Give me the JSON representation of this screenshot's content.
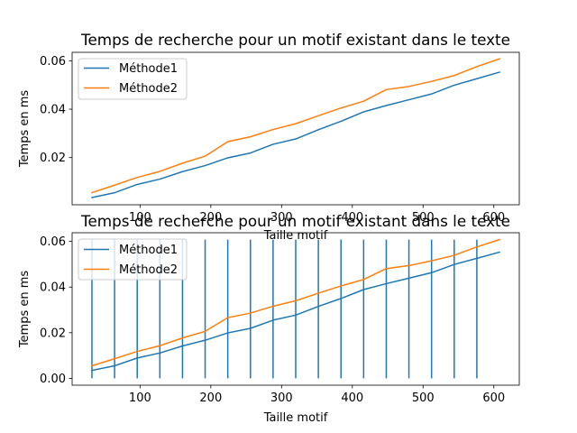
{
  "colors": {
    "series1": "#1f77b4",
    "series2": "#ff7f0e",
    "axis": "#000000",
    "legend_border": "#cccccc"
  },
  "chart_data": [
    {
      "type": "line",
      "title": "Temps de recherche pour un motif existant dans le texte",
      "xlabel": "Taille motif",
      "ylabel": "Temps en ms",
      "xlim": [
        4,
        636
      ],
      "ylim": [
        0.0005,
        0.0635
      ],
      "xticks": [
        100,
        200,
        300,
        400,
        500,
        600
      ],
      "yticks": [
        0.02,
        0.04,
        0.06
      ],
      "ytick_labels": [
        "0.02",
        "0.04",
        "0.06"
      ],
      "legend_position": "upper-left",
      "grid": false,
      "x": [
        32,
        64,
        96,
        128,
        160,
        192,
        224,
        256,
        288,
        320,
        352,
        384,
        416,
        448,
        480,
        512,
        544,
        576,
        608
      ],
      "series": [
        {
          "name": "Méthode1",
          "values": [
            0.0035,
            0.0055,
            0.0089,
            0.0111,
            0.0142,
            0.0167,
            0.0199,
            0.0219,
            0.0255,
            0.0277,
            0.0315,
            0.035,
            0.0389,
            0.0415,
            0.0439,
            0.0463,
            0.0499,
            0.0526,
            0.0553
          ]
        },
        {
          "name": "Méthode2",
          "values": [
            0.0055,
            0.0086,
            0.0118,
            0.0143,
            0.0177,
            0.0206,
            0.0266,
            0.0286,
            0.0316,
            0.034,
            0.0373,
            0.0405,
            0.0433,
            0.0481,
            0.0494,
            0.0515,
            0.0539,
            0.0576,
            0.0608
          ]
        }
      ]
    },
    {
      "type": "line",
      "title": "Temps de recherche pour un motif existant dans le texte",
      "xlabel": "Taille motif",
      "ylabel": "Temps en ms",
      "xlim": [
        4,
        636
      ],
      "ylim": [
        -0.003,
        0.0638
      ],
      "xticks": [
        100,
        200,
        300,
        400,
        500,
        600
      ],
      "yticks": [
        0.0,
        0.02,
        0.04,
        0.06
      ],
      "ytick_labels": [
        "0.00",
        "0.02",
        "0.04",
        "0.06"
      ],
      "legend_position": "upper-left",
      "grid": false,
      "vlines": {
        "x": [
          32,
          64,
          96,
          128,
          160,
          192,
          224,
          256,
          288,
          320,
          352,
          384,
          416,
          448,
          480,
          512,
          544,
          576
        ],
        "ymin": 0,
        "ymax": 0.0608
      },
      "x": [
        32,
        64,
        96,
        128,
        160,
        192,
        224,
        256,
        288,
        320,
        352,
        384,
        416,
        448,
        480,
        512,
        544,
        576,
        608
      ],
      "series": [
        {
          "name": "Méthode1",
          "values": [
            0.0035,
            0.0055,
            0.0089,
            0.0111,
            0.0142,
            0.0167,
            0.0199,
            0.0219,
            0.0255,
            0.0277,
            0.0315,
            0.035,
            0.0389,
            0.0415,
            0.0439,
            0.0463,
            0.0499,
            0.0526,
            0.0553
          ]
        },
        {
          "name": "Méthode2",
          "values": [
            0.0055,
            0.0086,
            0.0118,
            0.0143,
            0.0177,
            0.0206,
            0.0266,
            0.0286,
            0.0316,
            0.034,
            0.0373,
            0.0405,
            0.0433,
            0.0481,
            0.0494,
            0.0515,
            0.0539,
            0.0576,
            0.0608
          ]
        }
      ]
    }
  ]
}
